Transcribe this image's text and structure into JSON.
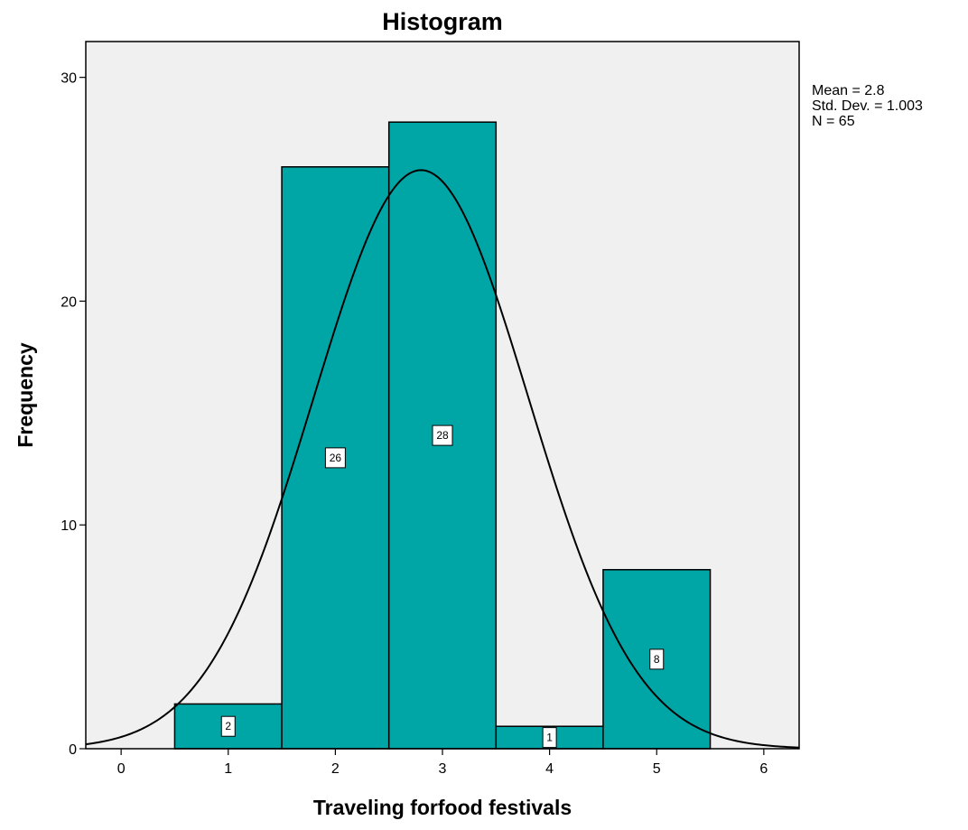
{
  "chart_data": {
    "type": "bar",
    "title": "Histogram",
    "xlabel": "Traveling forfood festivals",
    "ylabel": "Frequency",
    "x_ticks": [
      "0",
      "1",
      "2",
      "3",
      "4",
      "5",
      "6"
    ],
    "y_ticks": [
      "0",
      "10",
      "20",
      "30"
    ],
    "xlim": [
      -0.33,
      6.33
    ],
    "ylim": [
      0,
      31.6
    ],
    "bins": [
      {
        "x": 1,
        "value": 2,
        "label": "2"
      },
      {
        "x": 2,
        "value": 26,
        "label": "26"
      },
      {
        "x": 3,
        "value": 28,
        "label": "28"
      },
      {
        "x": 4,
        "value": 1,
        "label": "1"
      },
      {
        "x": 5,
        "value": 8,
        "label": "8"
      }
    ],
    "bin_width": 1,
    "normal_curve": {
      "mean": 2.8,
      "std_dev": 1.003,
      "n": 65
    },
    "stats_text": [
      "Mean = 2.8",
      "Std. Dev. = 1.003",
      "N = 65"
    ],
    "colors": {
      "bar": "#00a6a6",
      "plot_background": "#f0f0f0",
      "curve": "#000000"
    },
    "grid": false
  }
}
